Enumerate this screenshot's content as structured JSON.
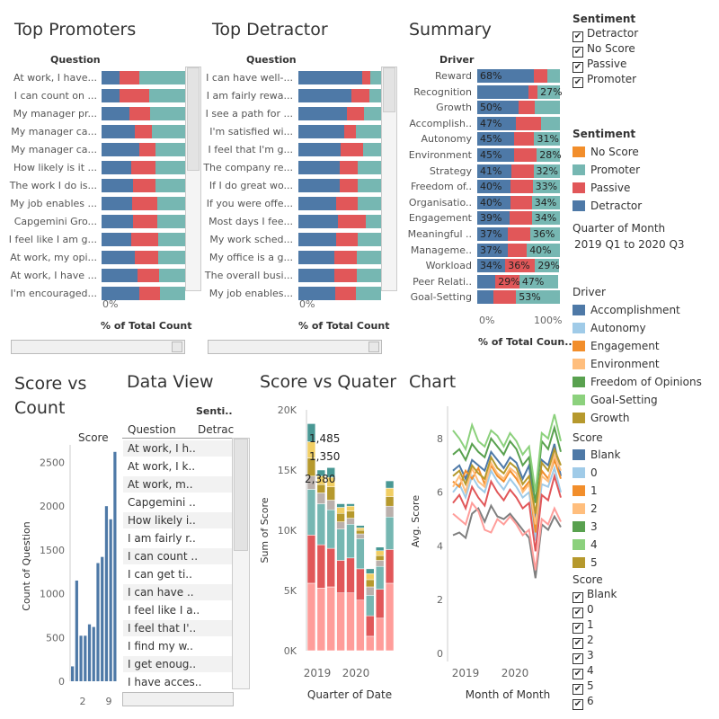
{
  "colors": {
    "detractor": "#4e79a7",
    "passive": "#e15759",
    "promoter": "#76b7b2",
    "no_score": "#f28e2b"
  },
  "top_promoters": {
    "title": "Top Promoters",
    "column_header": "Question",
    "axis_label": "% of Total Count",
    "axis_tick": "0%",
    "rows": [
      {
        "question": "At work, I have...",
        "detractor": 21,
        "passive": 24,
        "promoter": 55
      },
      {
        "question": "I can count on ...",
        "detractor": 22,
        "passive": 35,
        "promoter": 43
      },
      {
        "question": "My manager pr...",
        "detractor": 33,
        "passive": 25,
        "promoter": 42
      },
      {
        "question": "My manager ca...",
        "detractor": 40,
        "passive": 20,
        "promoter": 40
      },
      {
        "question": "My manager ca...",
        "detractor": 45,
        "passive": 20,
        "promoter": 35
      },
      {
        "question": "How likely is it ...",
        "detractor": 36,
        "passive": 29,
        "promoter": 35
      },
      {
        "question": "The work I do is...",
        "detractor": 38,
        "passive": 27,
        "promoter": 35
      },
      {
        "question": "My job enables ...",
        "detractor": 37,
        "passive": 30,
        "promoter": 33
      },
      {
        "question": "Capgemini Gro...",
        "detractor": 38,
        "passive": 29,
        "promoter": 33
      },
      {
        "question": "I feel like I am g...",
        "detractor": 36,
        "passive": 32,
        "promoter": 32
      },
      {
        "question": "At work, my opi...",
        "detractor": 40,
        "passive": 28,
        "promoter": 32
      },
      {
        "question": "At work, I have ...",
        "detractor": 43,
        "passive": 26,
        "promoter": 31
      },
      {
        "question": "I'm encouraged...",
        "detractor": 45,
        "passive": 25,
        "promoter": 30
      }
    ]
  },
  "top_detractor": {
    "title": "Top Detractor",
    "column_header": "Question",
    "axis_label": "% of Total Count",
    "axis_tick": "0%",
    "rows": [
      {
        "question": "I can have well-...",
        "detractor": 77,
        "passive": 10,
        "promoter": 13
      },
      {
        "question": "I am fairly rewa...",
        "detractor": 64,
        "passive": 22,
        "promoter": 14
      },
      {
        "question": "I see a path for ...",
        "detractor": 59,
        "passive": 20,
        "promoter": 21
      },
      {
        "question": "I'm satisfied wi...",
        "detractor": 55,
        "passive": 15,
        "promoter": 30
      },
      {
        "question": "I feel that I'm g...",
        "detractor": 51,
        "passive": 27,
        "promoter": 22
      },
      {
        "question": "The company re...",
        "detractor": 50,
        "passive": 22,
        "promoter": 28
      },
      {
        "question": "If I do great wo...",
        "detractor": 50,
        "passive": 22,
        "promoter": 28
      },
      {
        "question": "If you were offe...",
        "detractor": 46,
        "passive": 26,
        "promoter": 28
      },
      {
        "question": "Most days I fee...",
        "detractor": 48,
        "passive": 34,
        "promoter": 18
      },
      {
        "question": "My work sched...",
        "detractor": 46,
        "passive": 26,
        "promoter": 28
      },
      {
        "question": "My office is a g...",
        "detractor": 43,
        "passive": 28,
        "promoter": 29
      },
      {
        "question": "The overall busi...",
        "detractor": 44,
        "passive": 27,
        "promoter": 29
      },
      {
        "question": "My job enables...",
        "detractor": 45,
        "passive": 25,
        "promoter": 30
      }
    ]
  },
  "summary": {
    "title": "Summary",
    "column_header": "Driver",
    "axis_label": "% of Total Coun..",
    "axis_ticks": [
      "0%",
      "100%"
    ],
    "rows": [
      {
        "driver": "Reward",
        "detractor": 68,
        "passive": 17,
        "promoter": 15,
        "labels": [
          "68%",
          "",
          ""
        ]
      },
      {
        "driver": "Recognition",
        "detractor": 62,
        "passive": 11,
        "promoter": 27,
        "labels": [
          "",
          "",
          "27%"
        ]
      },
      {
        "driver": "Growth",
        "detractor": 50,
        "passive": 20,
        "promoter": 30,
        "labels": [
          "50%",
          "",
          ""
        ]
      },
      {
        "driver": "Accomplish..",
        "detractor": 47,
        "passive": 30,
        "promoter": 23,
        "labels": [
          "47%",
          "",
          ""
        ]
      },
      {
        "driver": "Autonomy",
        "detractor": 45,
        "passive": 24,
        "promoter": 31,
        "labels": [
          "45%",
          "",
          "31%"
        ]
      },
      {
        "driver": "Environment",
        "detractor": 45,
        "passive": 27,
        "promoter": 28,
        "labels": [
          "45%",
          "",
          "28%"
        ]
      },
      {
        "driver": "Strategy",
        "detractor": 41,
        "passive": 27,
        "promoter": 32,
        "labels": [
          "41%",
          "",
          "32%"
        ]
      },
      {
        "driver": "Freedom of..",
        "detractor": 40,
        "passive": 27,
        "promoter": 33,
        "labels": [
          "40%",
          "",
          "33%"
        ]
      },
      {
        "driver": "Organisatio..",
        "detractor": 40,
        "passive": 26,
        "promoter": 34,
        "labels": [
          "40%",
          "",
          "34%"
        ]
      },
      {
        "driver": "Engagement",
        "detractor": 39,
        "passive": 27,
        "promoter": 34,
        "labels": [
          "39%",
          "",
          "34%"
        ]
      },
      {
        "driver": "Meaningful ..",
        "detractor": 37,
        "passive": 27,
        "promoter": 36,
        "labels": [
          "37%",
          "",
          "36%"
        ]
      },
      {
        "driver": "Manageme..",
        "detractor": 37,
        "passive": 23,
        "promoter": 40,
        "labels": [
          "37%",
          "",
          "40%"
        ]
      },
      {
        "driver": "Workload",
        "detractor": 34,
        "passive": 36,
        "promoter": 29,
        "labels": [
          "34%",
          "36%",
          "29%"
        ]
      },
      {
        "driver": "Peer Relati..",
        "detractor": 22,
        "passive": 29,
        "promoter": 47,
        "labels": [
          "",
          "29%",
          "47%"
        ]
      },
      {
        "driver": "Goal-Setting",
        "detractor": 20,
        "passive": 27,
        "promoter": 53,
        "labels": [
          "",
          "",
          "53%"
        ]
      }
    ]
  },
  "sentiment_filter": {
    "title": "Sentiment",
    "items": [
      "Detractor",
      "No Score",
      "Passive",
      "Promoter"
    ]
  },
  "sentiment_legend": {
    "title": "Sentiment",
    "items": [
      {
        "label": "No Score",
        "color": "#f28e2b"
      },
      {
        "label": "Promoter",
        "color": "#76b7b2"
      },
      {
        "label": "Passive",
        "color": "#e15759"
      },
      {
        "label": "Detractor",
        "color": "#4e79a7"
      }
    ]
  },
  "quarter_filter": {
    "title": "Quarter of Month",
    "value": "2019 Q1 to 2020 Q3"
  },
  "driver_legend": {
    "title": "Driver",
    "items": [
      {
        "label": "Accomplishment",
        "color": "#4e79a7"
      },
      {
        "label": "Autonomy",
        "color": "#a0cbe8"
      },
      {
        "label": "Engagement",
        "color": "#f28e2b"
      },
      {
        "label": "Environment",
        "color": "#ffbe7d"
      },
      {
        "label": "Freedom of Opinions",
        "color": "#59a14f"
      },
      {
        "label": "Goal-Setting",
        "color": "#8cd17d"
      },
      {
        "label": "Growth",
        "color": "#b6992d"
      }
    ]
  },
  "score_legend": {
    "title": "Score",
    "items": [
      {
        "label": "Blank",
        "color": "#4e79a7"
      },
      {
        "label": "0",
        "color": "#a0cbe8"
      },
      {
        "label": "1",
        "color": "#f28e2b"
      },
      {
        "label": "2",
        "color": "#ffbe7d"
      },
      {
        "label": "3",
        "color": "#59a14f"
      },
      {
        "label": "4",
        "color": "#8cd17d"
      },
      {
        "label": "5",
        "color": "#b6992d"
      }
    ]
  },
  "score_filter": {
    "title": "Score",
    "items": [
      "Blank",
      "0",
      "1",
      "2",
      "3",
      "4",
      "5",
      "6"
    ]
  },
  "data_view": {
    "title": "Data View",
    "column_header": "Question",
    "sentiment_header": "Senti..",
    "sentiment_value": "Detrac",
    "rows": [
      "At work, I h..",
      "At work, I k..",
      "At work, m..",
      "Capgemini ..",
      "How likely i..",
      "I am fairly r..",
      "I can count ..",
      "I can get ti..",
      "I can have ..",
      "I feel like I a..",
      "I feel that I'..",
      "I find my w..",
      "I get enoug..",
      "I have acces.."
    ]
  },
  "chart_data": [
    {
      "type": "bar",
      "title": "Top Promoters",
      "xlabel": "% of Total Count",
      "ylabel": "Question",
      "note": "100% stacked horizontal bars: Detractor / Passive / Promoter (values in top_promoters.rows)"
    },
    {
      "type": "bar",
      "title": "Top Detractor",
      "xlabel": "% of Total Count",
      "ylabel": "Question",
      "note": "100% stacked horizontal bars (values in top_detractor.rows)"
    },
    {
      "type": "bar",
      "title": "Summary",
      "xlabel": "% of Total Coun..",
      "ylabel": "Driver",
      "note": "100% stacked horizontal bars (values in summary.rows)"
    },
    {
      "type": "bar",
      "title": "Score vs Count",
      "subtitle": "Score",
      "xlabel": "",
      "ylabel": "Count of Question",
      "x_ticks": [
        "2",
        "9"
      ],
      "y_ticks": [
        0,
        500,
        1000,
        1500,
        2000,
        2500
      ],
      "ylim": [
        0,
        2700
      ],
      "values": [
        170,
        1150,
        520,
        520,
        650,
        620,
        1350,
        1420,
        2000,
        1850,
        2620
      ]
    },
    {
      "type": "bar",
      "title": "Score vs Quater",
      "xlabel": "Quarter of Date",
      "ylabel": "Sum of Score",
      "x_ticks": [
        "2019",
        "2020"
      ],
      "y_ticks": [
        "0K",
        "5K",
        "10K",
        "15K",
        "20K"
      ],
      "ylim": [
        0,
        20000
      ],
      "annotations": [
        "1,485",
        "1,350",
        "2,380"
      ],
      "stack_colors": [
        "#ff9d9a",
        "#e15759",
        "#76b7b2",
        "#bab0ac",
        "#b6992d",
        "#f1ce63",
        "#499894"
      ],
      "stacks": [
        [
          5600,
          4000,
          3800,
          1100,
          1500,
          1350,
          1500
        ],
        [
          5200,
          3600,
          3400,
          900,
          700,
          700,
          500
        ],
        [
          5300,
          3200,
          3200,
          800,
          1100,
          800,
          800
        ],
        [
          4800,
          2700,
          2600,
          600,
          700,
          500,
          300
        ],
        [
          4800,
          2900,
          2800,
          500,
          600,
          400,
          200
        ],
        [
          4200,
          2600,
          2500,
          400,
          300,
          200,
          200
        ],
        [
          1200,
          1700,
          1700,
          700,
          600,
          500,
          400
        ],
        [
          2700,
          2400,
          1900,
          500,
          400,
          400,
          300
        ],
        [
          5600,
          2800,
          2700,
          900,
          800,
          700,
          600
        ]
      ]
    },
    {
      "type": "line",
      "title": "Chart",
      "xlabel": "Month of Month",
      "ylabel": "Avg. Score",
      "x_ticks": [
        "2019",
        "2020"
      ],
      "y_ticks": [
        0,
        2,
        4,
        6,
        8
      ],
      "ylim": [
        -0.3,
        9.2
      ],
      "series": [
        {
          "color": "#4e79a7",
          "values": [
            6.8,
            7.0,
            6.5,
            7.2,
            7.0,
            6.8,
            7.5,
            7.2,
            6.9,
            7.3,
            7.1,
            6.5,
            7.0,
            5.0,
            7.2,
            7.0,
            7.8,
            6.6
          ]
        },
        {
          "color": "#a0cbe8",
          "values": [
            6.0,
            6.3,
            5.8,
            6.6,
            6.2,
            6.0,
            6.8,
            6.4,
            6.1,
            6.5,
            6.2,
            5.8,
            6.0,
            4.2,
            6.3,
            6.2,
            6.9,
            6.0
          ]
        },
        {
          "color": "#f28e2b",
          "values": [
            6.4,
            6.2,
            6.8,
            6.5,
            6.9,
            6.3,
            7.0,
            6.6,
            6.4,
            6.8,
            6.5,
            6.1,
            6.4,
            4.5,
            6.8,
            6.5,
            7.2,
            6.5
          ]
        },
        {
          "color": "#ffbe7d",
          "values": [
            6.2,
            6.6,
            6.0,
            6.9,
            6.4,
            6.2,
            7.1,
            6.7,
            6.5,
            6.9,
            6.7,
            6.0,
            6.3,
            4.8,
            6.6,
            6.4,
            7.4,
            6.8
          ]
        },
        {
          "color": "#59a14f",
          "values": [
            7.4,
            7.6,
            7.2,
            7.8,
            7.5,
            7.3,
            8.0,
            7.7,
            7.4,
            7.9,
            7.6,
            7.0,
            7.3,
            5.6,
            7.9,
            7.6,
            8.4,
            7.5
          ]
        },
        {
          "color": "#8cd17d",
          "values": [
            8.3,
            8.0,
            7.6,
            8.5,
            7.9,
            7.7,
            8.3,
            8.1,
            7.7,
            8.2,
            7.9,
            7.4,
            7.7,
            6.0,
            8.2,
            8.0,
            8.9,
            7.9
          ]
        },
        {
          "color": "#e15759",
          "values": [
            5.6,
            5.9,
            5.4,
            6.2,
            5.8,
            5.5,
            6.4,
            6.0,
            5.7,
            6.1,
            5.8,
            5.4,
            5.6,
            3.8,
            5.9,
            5.7,
            6.6,
            5.8
          ]
        },
        {
          "color": "#7f7f7f",
          "values": [
            4.4,
            4.5,
            4.3,
            5.2,
            5.4,
            4.9,
            5.5,
            5.1,
            5.0,
            5.2,
            4.9,
            4.6,
            4.3,
            2.8,
            4.8,
            4.6,
            5.1,
            4.7
          ]
        },
        {
          "color": "#ff9d9a",
          "values": [
            5.2,
            5.0,
            4.8,
            5.6,
            5.3,
            4.6,
            4.5,
            5.0,
            4.8,
            5.1,
            4.8,
            4.4,
            4.6,
            3.1,
            5.0,
            4.8,
            5.4,
            4.9
          ]
        },
        {
          "color": "#b6992d",
          "values": [
            6.6,
            6.8,
            6.3,
            7.0,
            6.7,
            6.5,
            7.3,
            6.9,
            6.7,
            7.1,
            6.9,
            6.3,
            6.6,
            5.2,
            7.1,
            6.8,
            7.6,
            7.0
          ]
        }
      ]
    }
  ]
}
